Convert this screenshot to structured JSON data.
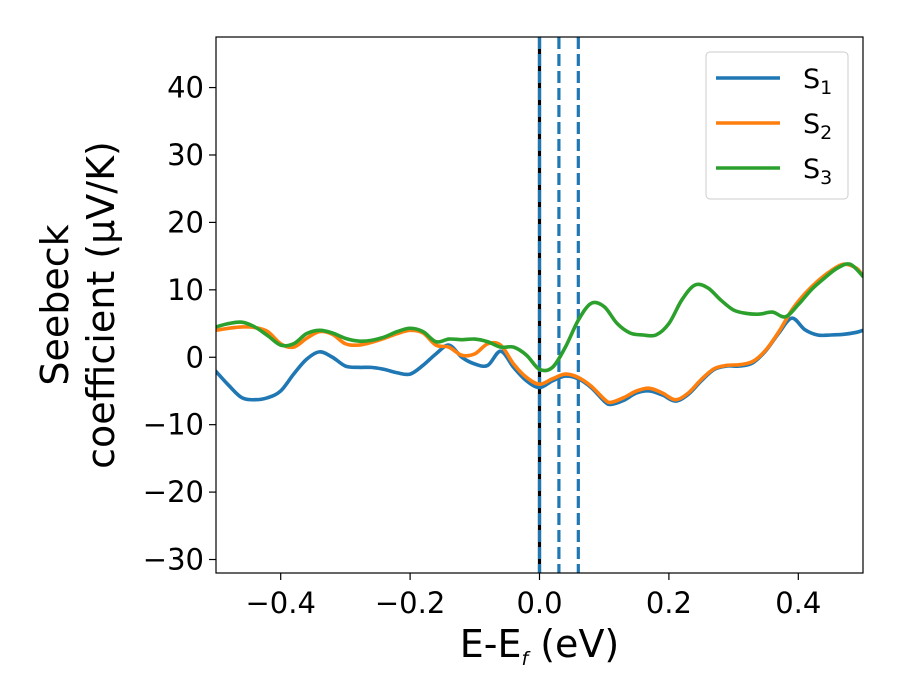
{
  "chart_data": {
    "type": "line",
    "xlabel": {
      "main": "E-E",
      "sub": "f",
      "unit": " (eV)"
    },
    "ylabel": {
      "line1": "Seebeck",
      "line2": "coefficient  (μV/K)"
    },
    "xlim": [
      -0.5,
      0.5
    ],
    "ylim": [
      -32,
      47.5
    ],
    "xticks": [
      -0.4,
      -0.2,
      0.0,
      0.2,
      0.4
    ],
    "xtick_labels": [
      "−0.4",
      "−0.2",
      "0.0",
      "0.2",
      "0.4"
    ],
    "yticks": [
      -30,
      -20,
      -10,
      0,
      10,
      20,
      30,
      40
    ],
    "ytick_labels": [
      "−30",
      "−20",
      "−10",
      "0",
      "10",
      "20",
      "30",
      "40"
    ],
    "grid": false,
    "legend_position": "top-right",
    "vlines": [
      {
        "x": 0.0,
        "color": "#000000",
        "style": "solid"
      },
      {
        "x": 0.0,
        "color": "#1f77b4",
        "style": "dashed"
      },
      {
        "x": 0.03,
        "color": "#1f77b4",
        "style": "dashed"
      },
      {
        "x": 0.06,
        "color": "#1f77b4",
        "style": "dashed"
      }
    ],
    "series": [
      {
        "name": "S",
        "sub": "1",
        "color": "#1f77b4",
        "points": [
          [
            -0.5,
            -2.1
          ],
          [
            -0.48,
            -4.2
          ],
          [
            -0.46,
            -6.0
          ],
          [
            -0.44,
            -6.3
          ],
          [
            -0.42,
            -6.0
          ],
          [
            -0.4,
            -5.0
          ],
          [
            -0.38,
            -2.5
          ],
          [
            -0.36,
            -0.3
          ],
          [
            -0.34,
            0.8
          ],
          [
            -0.32,
            0.0
          ],
          [
            -0.3,
            -1.3
          ],
          [
            -0.28,
            -1.5
          ],
          [
            -0.26,
            -1.5
          ],
          [
            -0.24,
            -1.8
          ],
          [
            -0.22,
            -2.3
          ],
          [
            -0.2,
            -2.5
          ],
          [
            -0.18,
            -1.2
          ],
          [
            -0.16,
            0.5
          ],
          [
            -0.14,
            1.8
          ],
          [
            -0.12,
            0.0
          ],
          [
            -0.1,
            -1.0
          ],
          [
            -0.08,
            -1.2
          ],
          [
            -0.06,
            0.9
          ],
          [
            -0.04,
            -1.5
          ],
          [
            -0.02,
            -3.5
          ],
          [
            0.0,
            -4.5
          ],
          [
            0.02,
            -3.5
          ],
          [
            0.04,
            -2.8
          ],
          [
            0.06,
            -3.2
          ],
          [
            0.08,
            -4.5
          ],
          [
            0.1,
            -6.5
          ],
          [
            0.11,
            -7.0
          ],
          [
            0.13,
            -6.4
          ],
          [
            0.15,
            -5.3
          ],
          [
            0.17,
            -5.0
          ],
          [
            0.19,
            -5.6
          ],
          [
            0.21,
            -6.5
          ],
          [
            0.23,
            -5.5
          ],
          [
            0.25,
            -3.5
          ],
          [
            0.27,
            -1.8
          ],
          [
            0.29,
            -1.3
          ],
          [
            0.31,
            -1.3
          ],
          [
            0.33,
            -0.8
          ],
          [
            0.35,
            1.0
          ],
          [
            0.37,
            3.6
          ],
          [
            0.39,
            5.8
          ],
          [
            0.41,
            4.1
          ],
          [
            0.43,
            3.3
          ],
          [
            0.45,
            3.3
          ],
          [
            0.47,
            3.4
          ],
          [
            0.49,
            3.7
          ],
          [
            0.5,
            4.0
          ]
        ]
      },
      {
        "name": "S",
        "sub": "2",
        "color": "#ff7f0e",
        "points": [
          [
            -0.5,
            4.0
          ],
          [
            -0.48,
            4.3
          ],
          [
            -0.46,
            4.5
          ],
          [
            -0.44,
            4.4
          ],
          [
            -0.42,
            3.8
          ],
          [
            -0.4,
            2.0
          ],
          [
            -0.38,
            1.5
          ],
          [
            -0.36,
            2.8
          ],
          [
            -0.34,
            3.8
          ],
          [
            -0.32,
            3.4
          ],
          [
            -0.3,
            2.0
          ],
          [
            -0.28,
            1.8
          ],
          [
            -0.26,
            2.2
          ],
          [
            -0.24,
            2.8
          ],
          [
            -0.22,
            3.5
          ],
          [
            -0.2,
            4.0
          ],
          [
            -0.18,
            3.6
          ],
          [
            -0.16,
            1.8
          ],
          [
            -0.14,
            1.5
          ],
          [
            -0.12,
            0.3
          ],
          [
            -0.1,
            0.5
          ],
          [
            -0.08,
            2.0
          ],
          [
            -0.06,
            1.8
          ],
          [
            -0.04,
            -1.0
          ],
          [
            -0.02,
            -3.0
          ],
          [
            0.0,
            -4.0
          ],
          [
            0.02,
            -3.2
          ],
          [
            0.04,
            -2.5
          ],
          [
            0.06,
            -3.0
          ],
          [
            0.08,
            -4.3
          ],
          [
            0.1,
            -6.2
          ],
          [
            0.11,
            -6.7
          ],
          [
            0.13,
            -6.0
          ],
          [
            0.15,
            -5.0
          ],
          [
            0.17,
            -4.6
          ],
          [
            0.19,
            -5.3
          ],
          [
            0.21,
            -6.3
          ],
          [
            0.23,
            -5.3
          ],
          [
            0.25,
            -3.3
          ],
          [
            0.27,
            -1.7
          ],
          [
            0.29,
            -1.2
          ],
          [
            0.31,
            -1.1
          ],
          [
            0.33,
            -0.6
          ],
          [
            0.35,
            1.1
          ],
          [
            0.37,
            3.8
          ],
          [
            0.39,
            7.0
          ],
          [
            0.41,
            9.4
          ],
          [
            0.43,
            11.3
          ],
          [
            0.45,
            12.8
          ],
          [
            0.47,
            13.8
          ],
          [
            0.49,
            13.2
          ],
          [
            0.5,
            12.0
          ]
        ]
      },
      {
        "name": "S",
        "sub": "3",
        "color": "#2ca02c",
        "points": [
          [
            -0.5,
            4.5
          ],
          [
            -0.48,
            5.0
          ],
          [
            -0.46,
            5.2
          ],
          [
            -0.44,
            4.5
          ],
          [
            -0.42,
            3.2
          ],
          [
            -0.4,
            1.8
          ],
          [
            -0.38,
            2.0
          ],
          [
            -0.36,
            3.5
          ],
          [
            -0.34,
            4.0
          ],
          [
            -0.32,
            3.6
          ],
          [
            -0.3,
            2.8
          ],
          [
            -0.28,
            2.4
          ],
          [
            -0.26,
            2.5
          ],
          [
            -0.24,
            3.0
          ],
          [
            -0.22,
            3.8
          ],
          [
            -0.2,
            4.3
          ],
          [
            -0.18,
            3.8
          ],
          [
            -0.16,
            2.3
          ],
          [
            -0.14,
            2.7
          ],
          [
            -0.12,
            2.6
          ],
          [
            -0.1,
            2.7
          ],
          [
            -0.08,
            2.3
          ],
          [
            -0.06,
            1.5
          ],
          [
            -0.04,
            1.5
          ],
          [
            -0.02,
            0.3
          ],
          [
            0.0,
            -1.8
          ],
          [
            0.02,
            -1.5
          ],
          [
            0.04,
            1.5
          ],
          [
            0.06,
            5.5
          ],
          [
            0.08,
            8.0
          ],
          [
            0.1,
            7.5
          ],
          [
            0.12,
            5.0
          ],
          [
            0.14,
            3.6
          ],
          [
            0.16,
            3.3
          ],
          [
            0.18,
            3.3
          ],
          [
            0.2,
            5.0
          ],
          [
            0.22,
            8.5
          ],
          [
            0.24,
            10.7
          ],
          [
            0.26,
            10.3
          ],
          [
            0.28,
            8.5
          ],
          [
            0.3,
            7.0
          ],
          [
            0.32,
            6.5
          ],
          [
            0.34,
            6.4
          ],
          [
            0.36,
            6.7
          ],
          [
            0.38,
            6.0
          ],
          [
            0.4,
            7.8
          ],
          [
            0.42,
            10.0
          ],
          [
            0.44,
            11.7
          ],
          [
            0.46,
            13.2
          ],
          [
            0.48,
            13.8
          ],
          [
            0.5,
            12.0
          ]
        ]
      }
    ]
  }
}
